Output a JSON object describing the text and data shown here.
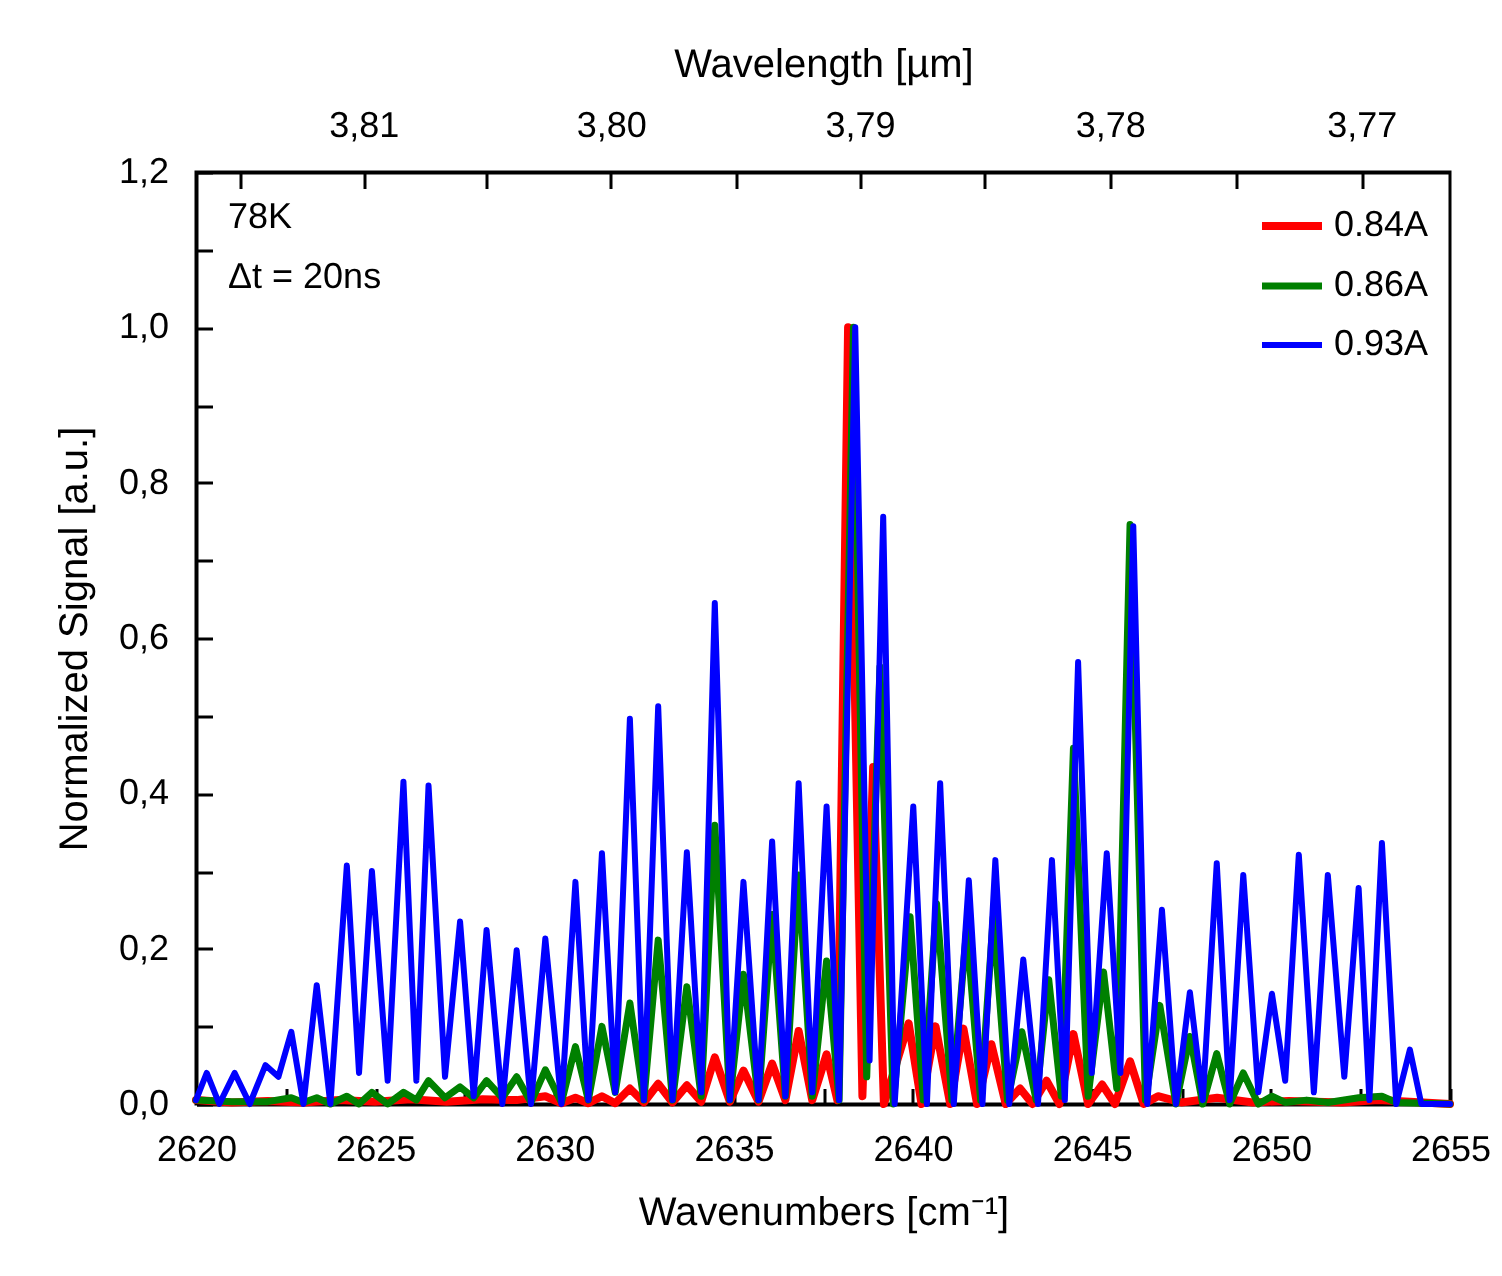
{
  "chart_data": {
    "type": "line",
    "xlabel": "Wavenumbers [cm⁻¹]",
    "x2label": "Wavelength [µm]",
    "ylabel": "Normalized Signal [a.u.]",
    "annotations": [
      "78K",
      "Δt = 20ns"
    ],
    "xlim": [
      2620,
      2655
    ],
    "xticks": [
      2620,
      {
        "value": 2622.5,
        "label": null
      },
      2625,
      {
        "value": 2627.5,
        "label": null
      },
      2630,
      {
        "value": 2632.5,
        "label": null
      },
      2635,
      {
        "value": 2637.5,
        "label": null
      },
      2640,
      {
        "value": 2642.5,
        "label": null
      },
      2645,
      {
        "value": 2647.5,
        "label": null
      },
      2650,
      {
        "value": 2652.5,
        "label": null
      },
      2655
    ],
    "x2lim": [
      3.81679,
      3.76648
    ],
    "x2ticks": [
      {
        "value": 3.815,
        "label": null
      },
      {
        "value": 3.81,
        "label": "3,81"
      },
      {
        "value": 3.805,
        "label": null
      },
      {
        "value": 3.8,
        "label": "3,80"
      },
      {
        "value": 3.795,
        "label": null
      },
      {
        "value": 3.79,
        "label": "3,79"
      },
      {
        "value": 3.785,
        "label": null
      },
      {
        "value": 3.78,
        "label": "3,78"
      },
      {
        "value": 3.775,
        "label": null
      },
      {
        "value": 3.77,
        "label": "3,77"
      }
    ],
    "ylim": [
      0,
      1.2
    ],
    "yticks": [
      {
        "value": 0,
        "label": "0,0"
      },
      {
        "value": 0.1,
        "label": null
      },
      {
        "value": 0.2,
        "label": "0,2"
      },
      {
        "value": 0.3,
        "label": null
      },
      {
        "value": 0.4,
        "label": "0,4"
      },
      {
        "value": 0.5,
        "label": null
      },
      {
        "value": 0.6,
        "label": "0,6"
      },
      {
        "value": 0.7,
        "label": null
      },
      {
        "value": 0.8,
        "label": "0,8"
      },
      {
        "value": 0.9,
        "label": null
      },
      {
        "value": 1.0,
        "label": "1,0"
      },
      {
        "value": 1.1,
        "label": null
      },
      {
        "value": 1.2,
        "label": "1,2"
      }
    ],
    "legend": "top right",
    "series": [
      {
        "name": "0.84A",
        "color": "#ff0000",
        "x": [
          2620.0,
          2621.0,
          2622.0,
          2623.0,
          2624.0,
          2625.0,
          2626.0,
          2627.0,
          2628.0,
          2628.95,
          2629.75,
          2630.2,
          2630.59,
          2630.95,
          2631.33,
          2631.7,
          2632.11,
          2632.5,
          2632.9,
          2633.3,
          2633.7,
          2634.1,
          2634.48,
          2634.9,
          2635.28,
          2635.7,
          2636.08,
          2636.45,
          2636.82,
          2637.2,
          2637.6,
          2637.9,
          2638.2,
          2638.6,
          2638.9,
          2639.2,
          2639.89,
          2640.25,
          2640.64,
          2641.05,
          2641.42,
          2641.8,
          2642.2,
          2642.6,
          2643.0,
          2643.35,
          2643.74,
          2644.1,
          2644.49,
          2644.9,
          2645.29,
          2645.65,
          2646.07,
          2646.45,
          2646.85,
          2647.5,
          2648.5,
          2649.5,
          2650.5,
          2652.0,
          2653.0,
          2655.0
        ],
        "values": [
          0.005,
          0.002,
          0.004,
          0.002,
          0.005,
          0.003,
          0.006,
          0.003,
          0.006,
          0.005,
          0.01,
          0.001,
          0.008,
          0.001,
          0.01,
          0.001,
          0.02,
          0.002,
          0.026,
          0.002,
          0.024,
          0.003,
          0.06,
          0.003,
          0.043,
          0.003,
          0.052,
          0.005,
          0.094,
          0.005,
          0.064,
          0.005,
          1.0,
          0.01,
          0.434,
          0,
          0.104,
          0,
          0.1,
          0,
          0.097,
          0,
          0.077,
          0,
          0.02,
          0,
          0.03,
          0,
          0.09,
          0,
          0.025,
          0,
          0.055,
          0,
          0.01,
          0.002,
          0.008,
          0.002,
          0.004,
          0.002,
          0.005,
          0
        ]
      },
      {
        "name": "0.86A",
        "color": "#008000",
        "x": [
          2620.0,
          2621.0,
          2622.0,
          2622.66,
          2623.0,
          2623.37,
          2623.75,
          2624.21,
          2624.55,
          2624.91,
          2625.35,
          2625.79,
          2626.15,
          2626.49,
          2626.95,
          2627.37,
          2627.75,
          2628.11,
          2628.55,
          2628.95,
          2629.35,
          2629.75,
          2630.2,
          2630.59,
          2630.95,
          2631.33,
          2631.7,
          2632.11,
          2632.5,
          2632.9,
          2633.3,
          2633.7,
          2634.1,
          2634.48,
          2634.9,
          2635.28,
          2635.7,
          2636.08,
          2636.45,
          2636.82,
          2637.2,
          2637.6,
          2637.95,
          2638.35,
          2638.72,
          2639.09,
          2639.46,
          2639.93,
          2640.3,
          2640.67,
          2641.1,
          2641.51,
          2641.9,
          2642.25,
          2642.65,
          2643.05,
          2643.45,
          2643.8,
          2644.15,
          2644.49,
          2644.9,
          2645.33,
          2645.7,
          2646.07,
          2646.5,
          2646.9,
          2647.35,
          2647.74,
          2648.1,
          2648.49,
          2648.85,
          2649.23,
          2649.65,
          2650.03,
          2650.4,
          2651.0,
          2651.6,
          2652.45,
          2653.1,
          2653.5,
          2655.0
        ],
        "values": [
          0.005,
          0.003,
          0.003,
          0.008,
          0.002,
          0.008,
          0,
          0.01,
          0,
          0.015,
          0,
          0.015,
          0.005,
          0.03,
          0.008,
          0.022,
          0.008,
          0.03,
          0.008,
          0.035,
          0.002,
          0.044,
          0.002,
          0.074,
          0.005,
          0.1,
          0.015,
          0.13,
          0.005,
          0.211,
          0.005,
          0.151,
          0.01,
          0.359,
          0.005,
          0.167,
          0.005,
          0.244,
          0.01,
          0.295,
          0.01,
          0.184,
          0.005,
          1.0,
          0.035,
          0.563,
          0,
          0.241,
          0.005,
          0.258,
          0.005,
          0.226,
          0.005,
          0.24,
          0.005,
          0.093,
          0.005,
          0.16,
          0.01,
          0.458,
          0.01,
          0.17,
          0.02,
          0.746,
          0.005,
          0.127,
          0,
          0.087,
          0,
          0.065,
          0,
          0.04,
          0,
          0.01,
          0.002,
          0.005,
          0.002,
          0.008,
          0.01,
          0.002,
          0
        ]
      },
      {
        "name": "0.93A",
        "color": "#0000ff",
        "x": [
          2620.0,
          2620.3,
          2620.65,
          2621.08,
          2621.5,
          2621.94,
          2622.3,
          2622.66,
          2623.0,
          2623.37,
          2623.75,
          2624.21,
          2624.55,
          2624.91,
          2625.35,
          2625.79,
          2626.15,
          2626.49,
          2626.95,
          2627.37,
          2627.75,
          2628.11,
          2628.55,
          2628.95,
          2629.35,
          2629.75,
          2630.2,
          2630.59,
          2630.95,
          2631.33,
          2631.7,
          2632.11,
          2632.5,
          2632.9,
          2633.3,
          2633.7,
          2634.1,
          2634.48,
          2634.9,
          2635.28,
          2635.7,
          2636.08,
          2636.45,
          2636.82,
          2637.2,
          2637.6,
          2637.95,
          2638.4,
          2638.8,
          2639.18,
          2639.5,
          2640.02,
          2640.4,
          2640.77,
          2641.15,
          2641.57,
          2641.95,
          2642.31,
          2642.7,
          2643.09,
          2643.5,
          2643.89,
          2644.25,
          2644.62,
          2645.0,
          2645.42,
          2645.8,
          2646.16,
          2646.55,
          2646.96,
          2647.35,
          2647.74,
          2648.1,
          2648.49,
          2648.85,
          2649.23,
          2649.65,
          2650.03,
          2650.4,
          2650.78,
          2651.2,
          2651.59,
          2652.05,
          2652.45,
          2652.75,
          2653.1,
          2653.5,
          2653.88,
          2654.2,
          2655.0
        ],
        "values": [
          0.005,
          0.04,
          0,
          0.04,
          0,
          0.05,
          0.035,
          0.093,
          0,
          0.153,
          0,
          0.307,
          0.04,
          0.3,
          0.03,
          0.415,
          0.03,
          0.41,
          0.035,
          0.235,
          0.01,
          0.224,
          0,
          0.198,
          0,
          0.213,
          0,
          0.286,
          0.005,
          0.323,
          0.015,
          0.496,
          0.005,
          0.512,
          0.005,
          0.324,
          0.015,
          0.645,
          0.005,
          0.286,
          0.005,
          0.338,
          0.01,
          0.413,
          0.015,
          0.383,
          0.005,
          1.0,
          0.056,
          0.756,
          0,
          0.383,
          0,
          0.413,
          0,
          0.288,
          0,
          0.314,
          0,
          0.186,
          0,
          0.314,
          0.005,
          0.569,
          0.04,
          0.323,
          0.04,
          0.744,
          0,
          0.25,
          0,
          0.144,
          0.005,
          0.31,
          0.005,
          0.295,
          0.015,
          0.142,
          0.03,
          0.321,
          0.015,
          0.295,
          0.035,
          0.278,
          0.005,
          0.336,
          0,
          0.07,
          0,
          0
        ]
      }
    ]
  }
}
